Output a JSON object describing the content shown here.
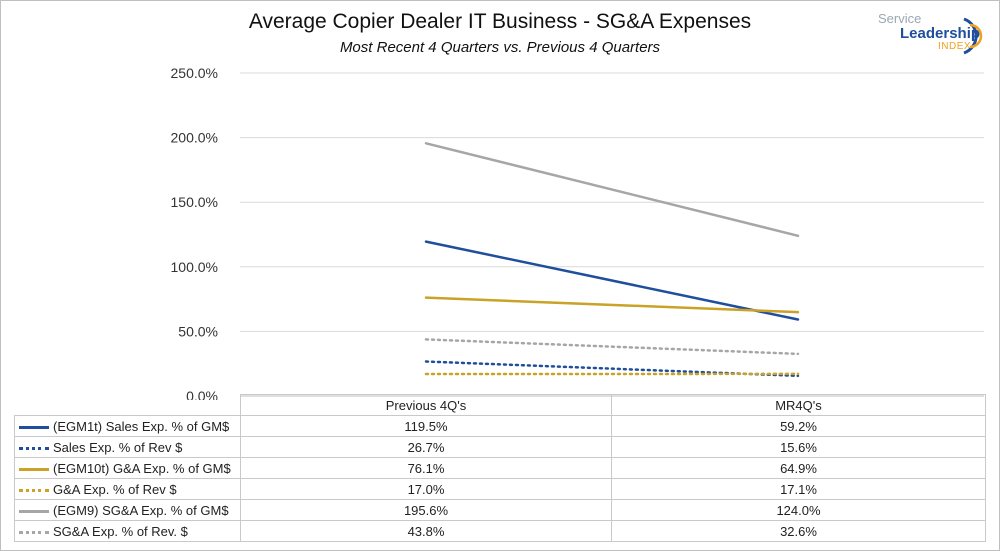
{
  "chart_data": {
    "type": "line",
    "title": "Average Copier Dealer IT Business - SG&A Expenses",
    "subtitle": "Most Recent 4 Quarters vs. Previous 4 Quarters",
    "categories": [
      "Previous 4Q's",
      "MR4Q's"
    ],
    "ylim": [
      0,
      250
    ],
    "yticks": [
      "250.0%",
      "200.0%",
      "150.0%",
      "100.0%",
      "50.0%",
      "0.0%"
    ],
    "ytick_values": [
      250,
      200,
      150,
      100,
      50,
      0
    ],
    "grid": true,
    "legend_placement": "data table below plot",
    "series": [
      {
        "name": "(EGM1t) Sales Exp. % of GM$",
        "values": [
          119.5,
          59.2
        ],
        "labels": [
          "119.5%",
          "59.2%"
        ],
        "color": "#1f4e9c",
        "dashed": false
      },
      {
        "name": "Sales Exp. % of Rev $",
        "values": [
          26.7,
          15.6
        ],
        "labels": [
          "26.7%",
          "15.6%"
        ],
        "color": "#1f4e9c",
        "dashed": true
      },
      {
        "name": "(EGM10t) G&A Exp. % of GM$",
        "values": [
          76.1,
          64.9
        ],
        "labels": [
          "76.1%",
          "64.9%"
        ],
        "color": "#c9a227",
        "dashed": false
      },
      {
        "name": "G&A Exp. % of Rev $",
        "values": [
          17.0,
          17.1
        ],
        "labels": [
          "17.0%",
          "17.1%"
        ],
        "color": "#c9a227",
        "dashed": true
      },
      {
        "name": "(EGM9) SG&A Exp. % of GM$",
        "values": [
          195.6,
          124.0
        ],
        "labels": [
          "195.6%",
          "124.0%"
        ],
        "color": "#a6a6a6",
        "dashed": false
      },
      {
        "name": "SG&A Exp. % of Rev. $",
        "values": [
          43.8,
          32.6
        ],
        "labels": [
          "43.8%",
          "32.6%"
        ],
        "color": "#a6a6a6",
        "dashed": true
      }
    ]
  },
  "logo": {
    "line1": "Service",
    "line2": "Leadership",
    "line3": "INDEX"
  }
}
